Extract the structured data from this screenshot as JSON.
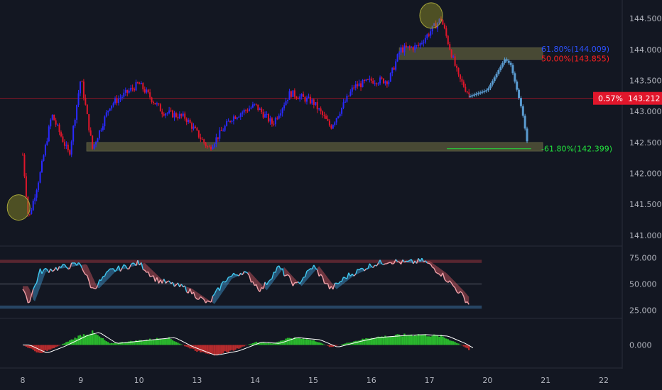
{
  "colors": {
    "background": "#131722",
    "text": "#b2b5be",
    "bull": "#2a2aff",
    "bear": "#e0162b",
    "projection": "#5a9bd0",
    "zone": "#5a5a3a",
    "current_price": "#e0162b",
    "rsi_bull": "#40c8f0",
    "rsi_bear": "#f0a0a8",
    "hist_pos": "#2fd42f",
    "hist_neg": "#d42f2f"
  },
  "chart_data": [
    {
      "type": "candlestick",
      "pane": "price",
      "x_ticks": [
        "8",
        "9",
        "10",
        "13",
        "14",
        "15",
        "16",
        "17",
        "20",
        "21",
        "22"
      ],
      "y_ticks": [
        "144.500",
        "144.000",
        "143.500",
        "143.000",
        "142.500",
        "142.000",
        "141.500",
        "141.000"
      ],
      "ylim": [
        140.85,
        144.8
      ],
      "current_price": {
        "value": 143.212,
        "label": "143.212",
        "change_label": "0.57%"
      },
      "fib_levels": [
        {
          "label": "61.80%(144.009)",
          "value": 144.009,
          "color": "blue"
        },
        {
          "label": "50.00%(143.855)",
          "value": 143.855,
          "color": "red"
        },
        {
          "label": "-61.80%(142.399)",
          "value": 142.399,
          "color": "green"
        }
      ],
      "zones": [
        {
          "from": 142.36,
          "to": 142.5
        },
        {
          "from": 143.84,
          "to": 144.03
        }
      ],
      "swing_marks": [
        {
          "x_index": 0.1,
          "value": 141.45
        },
        {
          "x_index": 7.2,
          "value": 144.55
        }
      ],
      "path": [
        [
          0.0,
          142.3
        ],
        [
          0.1,
          141.25
        ],
        [
          0.3,
          142.0
        ],
        [
          0.5,
          142.95
        ],
        [
          0.8,
          142.3
        ],
        [
          1.0,
          143.55
        ],
        [
          1.2,
          142.4
        ],
        [
          1.5,
          143.1
        ],
        [
          2.0,
          143.45
        ],
        [
          2.4,
          143.0
        ],
        [
          2.8,
          142.9
        ],
        [
          3.2,
          142.4
        ],
        [
          3.6,
          142.9
        ],
        [
          4.0,
          143.1
        ],
        [
          4.3,
          142.8
        ],
        [
          4.6,
          143.3
        ],
        [
          5.0,
          143.15
        ],
        [
          5.3,
          142.75
        ],
        [
          5.7,
          143.4
        ],
        [
          6.0,
          143.5
        ],
        [
          6.3,
          143.5
        ],
        [
          6.5,
          144.0
        ],
        [
          6.8,
          144.05
        ],
        [
          7.2,
          144.5
        ],
        [
          7.5,
          143.55
        ],
        [
          7.7,
          143.25
        ]
      ],
      "projection": [
        [
          7.7,
          143.25
        ],
        [
          8.0,
          143.35
        ],
        [
          8.3,
          143.85
        ],
        [
          8.4,
          143.75
        ],
        [
          8.6,
          142.99
        ],
        [
          8.7,
          142.399
        ]
      ]
    },
    {
      "type": "line",
      "pane": "rsi",
      "y_ticks": [
        "75.000",
        "50.000",
        "25.000"
      ],
      "ylim": [
        18,
        84
      ],
      "bands": [
        70,
        50,
        30
      ],
      "x": [
        0,
        0.1,
        0.3,
        0.6,
        1.0,
        1.2,
        1.5,
        2.0,
        2.3,
        2.8,
        3.2,
        3.5,
        3.8,
        4.1,
        4.4,
        4.7,
        5.0,
        5.3,
        5.6,
        6.0,
        6.3,
        6.6,
        6.9,
        7.2,
        7.5,
        7.7
      ],
      "values": [
        48,
        32,
        62,
        65,
        69,
        45,
        62,
        70,
        54,
        46,
        31,
        55,
        62,
        44,
        66,
        48,
        67,
        45,
        58,
        68,
        72,
        70,
        72,
        60,
        43,
        30
      ]
    },
    {
      "type": "histogram",
      "pane": "oscillator",
      "y_ticks": [
        "0.000"
      ],
      "ylim": [
        -1,
        1
      ],
      "x": [
        0,
        0.3,
        0.6,
        1.0,
        1.2,
        1.5,
        2.0,
        2.5,
        2.8,
        3.2,
        3.6,
        4.0,
        4.3,
        4.6,
        5.0,
        5.3,
        5.7,
        6.0,
        6.5,
        6.8,
        7.2,
        7.5,
        7.7
      ],
      "values": [
        0.0,
        -0.55,
        -0.1,
        0.65,
        0.85,
        0.1,
        0.3,
        0.5,
        -0.1,
        -0.7,
        -0.4,
        0.2,
        0.1,
        0.5,
        0.35,
        -0.15,
        0.25,
        0.5,
        0.65,
        0.7,
        0.6,
        0.1,
        -0.35
      ]
    }
  ]
}
